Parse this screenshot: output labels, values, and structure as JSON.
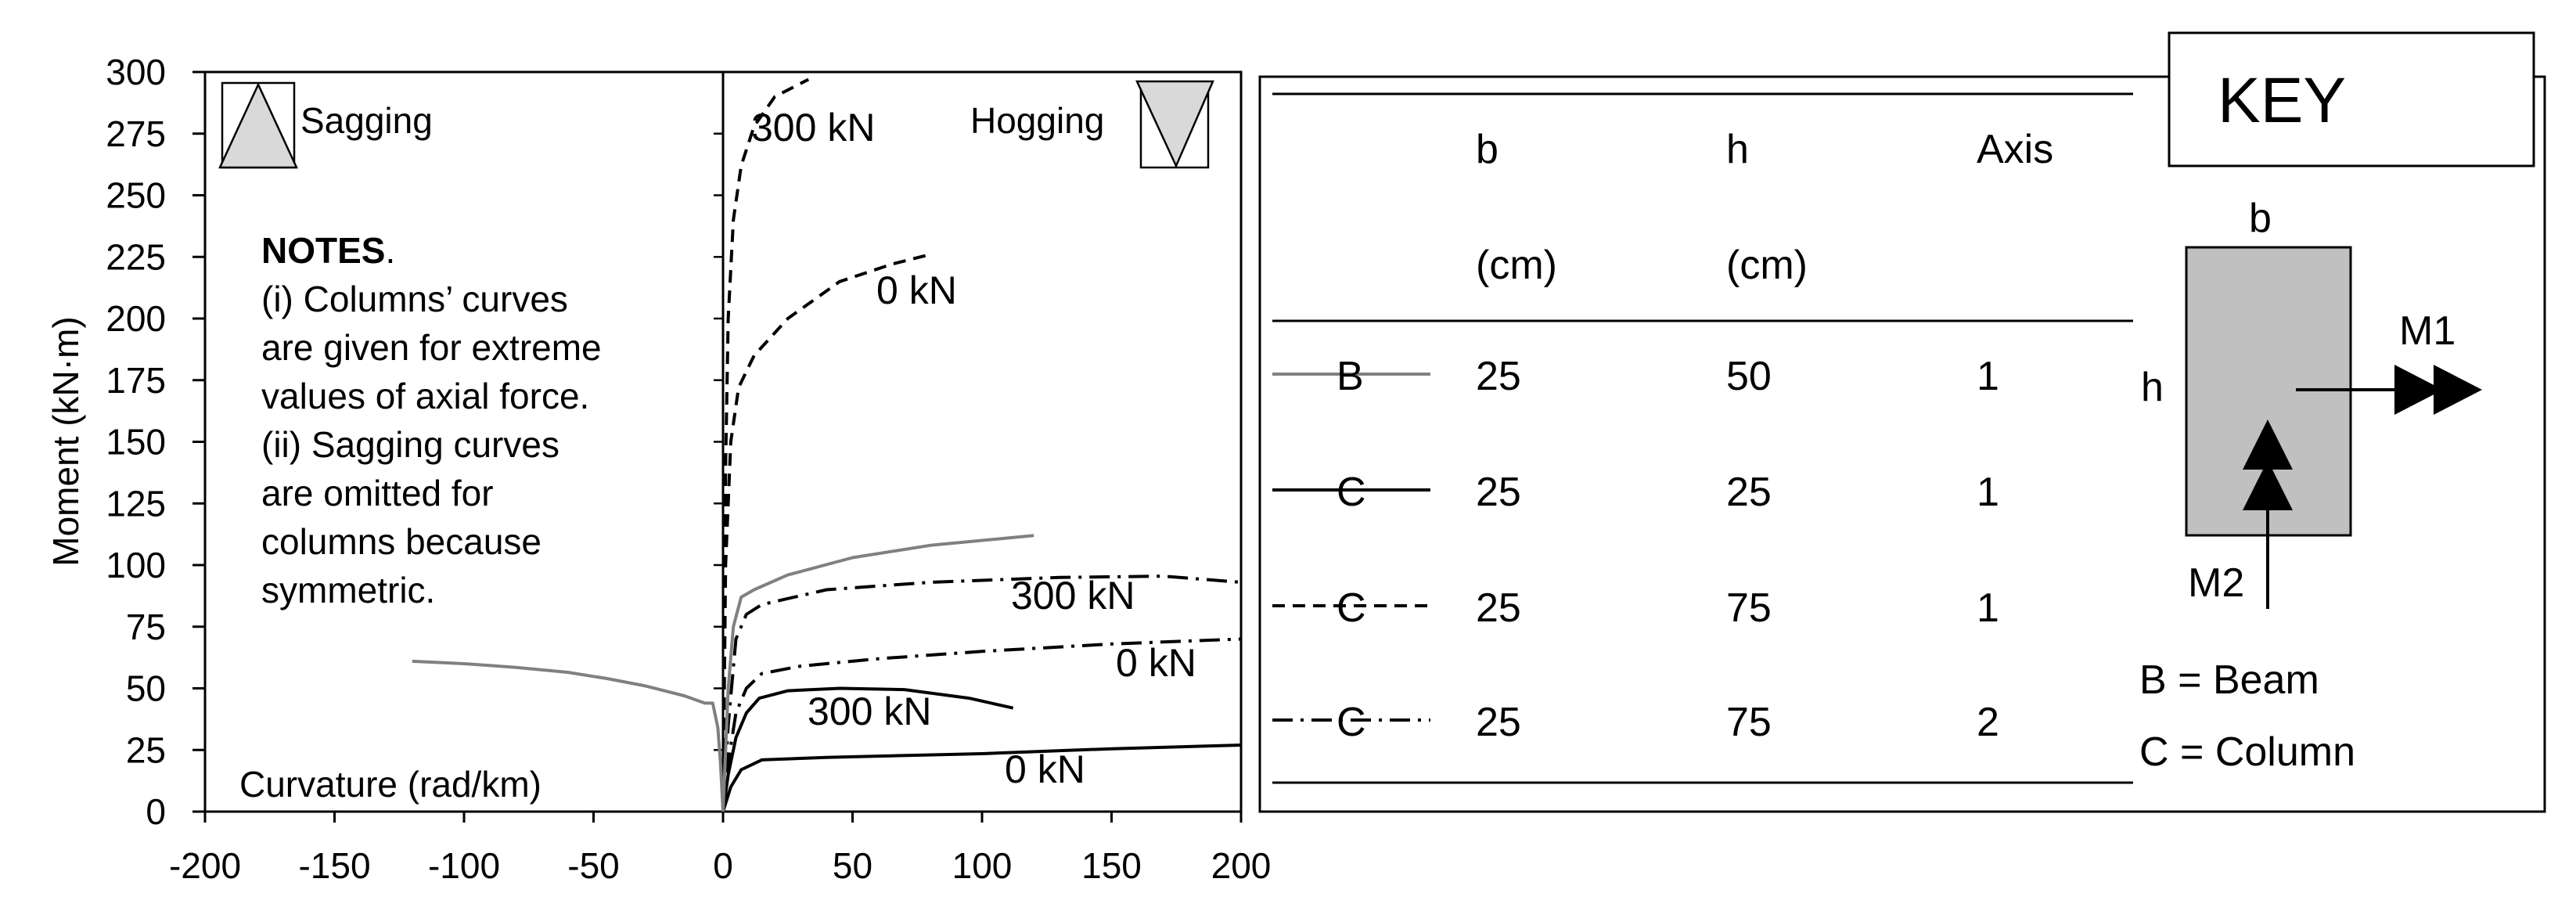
{
  "chart_data": {
    "type": "line",
    "ylabel": "Moment (kN·m)",
    "xlabel": "Curvature (rad/km)",
    "xlim": [
      -200,
      200
    ],
    "ylim": [
      0,
      300
    ],
    "x_ticks": [
      -200,
      -150,
      -100,
      -50,
      0,
      50,
      100,
      150,
      200
    ],
    "y_ticks": [
      0,
      25,
      50,
      75,
      100,
      125,
      150,
      175,
      200,
      225,
      250,
      275,
      300
    ],
    "grid": false,
    "sagging_label": "Sagging",
    "hogging_label": "Hogging",
    "notes": {
      "heading": "NOTES",
      "heading_suffix": ".",
      "lines": [
        "(i) Columns’ curves",
        "are given for extreme",
        "values of axial force.",
        "(ii) Sagging curves",
        "are omitted for",
        "columns because",
        "symmetric."
      ]
    },
    "series": [
      {
        "key": "C1-300",
        "line_color": "#000000",
        "dash": "solid",
        "label": "300 kN",
        "points": [
          [
            0,
            0
          ],
          [
            2,
            15
          ],
          [
            5,
            30
          ],
          [
            9,
            40
          ],
          [
            14,
            46
          ],
          [
            25,
            49
          ],
          [
            45,
            50
          ],
          [
            70,
            49.5
          ],
          [
            95,
            46
          ],
          [
            112,
            42
          ]
        ]
      },
      {
        "key": "C1-0",
        "line_color": "#000000",
        "dash": "solid",
        "label": "0 kN",
        "points": [
          [
            0,
            0
          ],
          [
            3,
            10
          ],
          [
            7,
            17
          ],
          [
            15,
            21
          ],
          [
            40,
            22
          ],
          [
            100,
            23.5
          ],
          [
            150,
            25.5
          ],
          [
            200,
            27
          ]
        ]
      },
      {
        "key": "C3-300",
        "line_color": "#000000",
        "dash": "dashdot",
        "label": "300 kN",
        "points": [
          [
            0,
            0
          ],
          [
            2,
            35
          ],
          [
            5,
            70
          ],
          [
            9,
            80
          ],
          [
            15,
            84
          ],
          [
            40,
            90
          ],
          [
            80,
            93
          ],
          [
            130,
            95
          ],
          [
            170,
            95.5
          ],
          [
            200,
            93
          ]
        ]
      },
      {
        "key": "C3-0",
        "line_color": "#000000",
        "dash": "dashdot",
        "label": "0 kN",
        "points": [
          [
            0,
            0
          ],
          [
            2,
            20
          ],
          [
            5,
            40
          ],
          [
            9,
            50
          ],
          [
            15,
            56
          ],
          [
            30,
            59
          ],
          [
            60,
            62
          ],
          [
            100,
            65
          ],
          [
            150,
            68
          ],
          [
            200,
            70
          ]
        ]
      },
      {
        "key": "C2-300",
        "line_color": "#000000",
        "dash": "dashed",
        "label": "300 kN",
        "points": [
          [
            0,
            0
          ],
          [
            1,
            140
          ],
          [
            2,
            200
          ],
          [
            4,
            240
          ],
          [
            7,
            262
          ],
          [
            12,
            278
          ],
          [
            20,
            290
          ],
          [
            33,
            297
          ]
        ]
      },
      {
        "key": "C2-0",
        "line_color": "#000000",
        "dash": "dashed",
        "label": "0 kN",
        "points": [
          [
            0,
            0
          ],
          [
            1,
            100
          ],
          [
            3,
            150
          ],
          [
            6,
            172
          ],
          [
            12,
            185
          ],
          [
            25,
            200
          ],
          [
            45,
            215
          ],
          [
            65,
            222
          ],
          [
            80,
            226
          ]
        ]
      },
      {
        "key": "B-hog",
        "line_color": "#808080",
        "dash": "solid",
        "label": "",
        "points": [
          [
            0,
            0
          ],
          [
            2,
            50
          ],
          [
            4,
            75
          ],
          [
            7,
            87
          ],
          [
            12,
            90
          ],
          [
            25,
            96
          ],
          [
            50,
            103
          ],
          [
            80,
            108
          ],
          [
            120,
            112
          ]
        ]
      },
      {
        "key": "B-sag",
        "line_color": "#808080",
        "dash": "solid",
        "label": "",
        "points": [
          [
            -120,
            61
          ],
          [
            -100,
            60
          ],
          [
            -80,
            58.5
          ],
          [
            -60,
            56.5
          ],
          [
            -45,
            54
          ],
          [
            -30,
            51
          ],
          [
            -15,
            47
          ],
          [
            -7,
            44
          ],
          [
            -4,
            44
          ],
          [
            -2,
            34
          ],
          [
            -1,
            20
          ],
          [
            0,
            0
          ]
        ]
      }
    ]
  },
  "key": {
    "title": "KEY",
    "headers": [
      "b",
      "h",
      "Axis"
    ],
    "units": [
      "(cm)",
      "(cm)",
      ""
    ],
    "rows": [
      {
        "symbol": "B",
        "line_color": "#808080",
        "dash": "solid",
        "b": "25",
        "h": "50",
        "axis": "1"
      },
      {
        "symbol": "C",
        "line_color": "#000000",
        "dash": "solid",
        "b": "25",
        "h": "25",
        "axis": "1"
      },
      {
        "symbol": "C",
        "line_color": "#000000",
        "dash": "dashed",
        "b": "25",
        "h": "75",
        "axis": "1"
      },
      {
        "symbol": "C",
        "line_color": "#000000",
        "dash": "dashdot",
        "b": "25",
        "h": "75",
        "axis": "2"
      }
    ],
    "section": {
      "b_label": "b",
      "h_label": "h",
      "m1_label": "M1",
      "m2_label": "M2",
      "fill": "#c0c0c0"
    },
    "definitions": [
      "B = Beam",
      "C = Column"
    ]
  }
}
